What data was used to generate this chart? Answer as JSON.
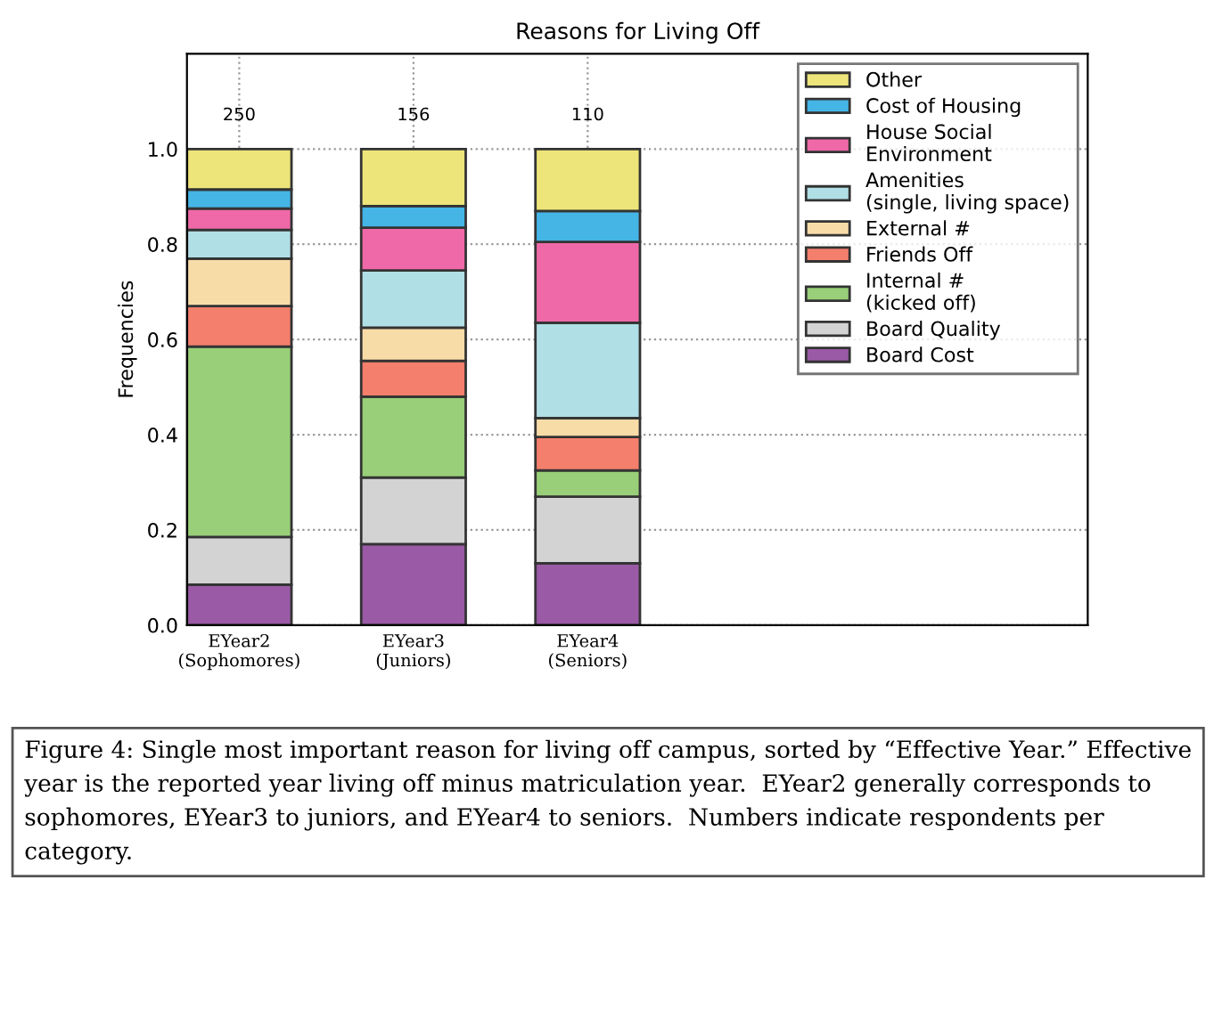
{
  "chart_data": {
    "type": "bar",
    "stacked": true,
    "title": "Reasons for Living Off",
    "ylabel": "Frequencies",
    "categories": [
      "EYear2\n(Sophomores)",
      "EYear3\n(Juniors)",
      "EYear4\n(Seniors)"
    ],
    "series": [
      {
        "name": "Board Cost",
        "color": "#9a5aa6",
        "values": [
          0.085,
          0.17,
          0.13
        ]
      },
      {
        "name": "Board Quality",
        "color": "#d3d3d3",
        "values": [
          0.1,
          0.14,
          0.14
        ]
      },
      {
        "name": "Internal #\n(kicked off)",
        "color": "#98cf78",
        "values": [
          0.4,
          0.17,
          0.055
        ]
      },
      {
        "name": "Friends Off",
        "color": "#f47f6c",
        "values": [
          0.085,
          0.075,
          0.07
        ]
      },
      {
        "name": "External #",
        "color": "#f8dca8",
        "values": [
          0.1,
          0.07,
          0.04
        ]
      },
      {
        "name": "Amenities\n(single, living space)",
        "color": "#b0dfe6",
        "values": [
          0.06,
          0.12,
          0.2
        ]
      },
      {
        "name": "House Social\nEnvironment",
        "color": "#ef69a8",
        "values": [
          0.045,
          0.09,
          0.17
        ]
      },
      {
        "name": "Cost of Housing",
        "color": "#45b5e6",
        "values": [
          0.04,
          0.045,
          0.065
        ]
      },
      {
        "name": "Other",
        "color": "#ede57a",
        "values": [
          0.085,
          0.12,
          0.13
        ]
      }
    ],
    "ylim": [
      0,
      1.2
    ],
    "yticks": [
      {
        "value": 0,
        "label": "0.0"
      },
      {
        "value": 0.2,
        "label": "0.2"
      },
      {
        "value": 0.4,
        "label": "0.4"
      },
      {
        "value": 0.6,
        "label": "0.6"
      },
      {
        "value": 0.8,
        "label": "0.8"
      },
      {
        "value": 1.0,
        "label": "1.0"
      }
    ],
    "grid": true,
    "legend": "top right",
    "annotations": [
      "250",
      "156",
      "110",
      "Figure 4: Single most important reason for living off campus, sorted by “Effective Year.” Effective year is the reported year living off minus matriculation year.  EYear2 generally corresponds to sophomores, EYear3 to juniors, and EYear4 to seniors.  Numbers indicate respondents per category."
    ]
  }
}
